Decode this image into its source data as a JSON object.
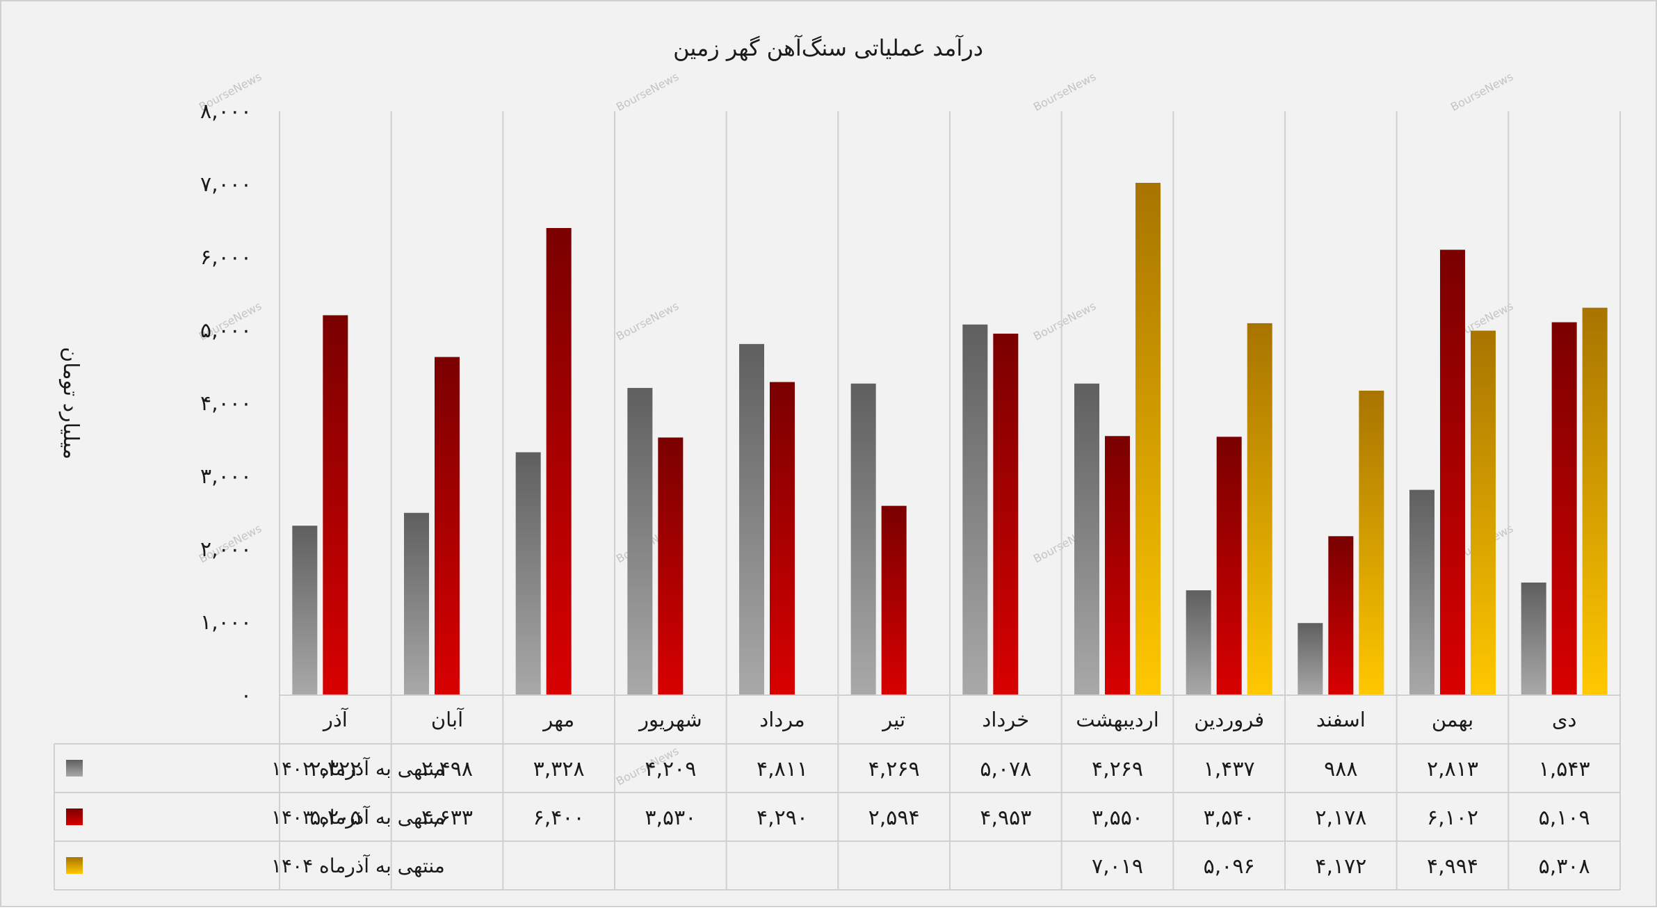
{
  "chart_data": {
    "type": "bar",
    "title": "درآمد عملیاتی سنگ‌آهن گهر زمین",
    "ylabel": "میلیارد تومان",
    "xlabel": "",
    "ylim": [
      0,
      8000
    ],
    "yticks": [
      0,
      1000,
      2000,
      3000,
      4000,
      5000,
      6000,
      7000,
      8000
    ],
    "ytick_labels": [
      "۰",
      "۱,۰۰۰",
      "۲,۰۰۰",
      "۳,۰۰۰",
      "۴,۰۰۰",
      "۵,۰۰۰",
      "۶,۰۰۰",
      "۷,۰۰۰",
      "۸,۰۰۰"
    ],
    "categories": [
      "دی",
      "بهمن",
      "اسفند",
      "فروردین",
      "اردیبهشت",
      "خرداد",
      "تیر",
      "مرداد",
      "شهریور",
      "مهر",
      "آبان",
      "آذر"
    ],
    "series": [
      {
        "name": "منتهی به آذرماه ۱۴۰۲",
        "values": [
          1543,
          2813,
          988,
          1437,
          4269,
          5078,
          4269,
          4811,
          4209,
          3328,
          2498,
          2322
        ],
        "labels": [
          "۱,۵۴۳",
          "۲,۸۱۳",
          "۹۸۸",
          "۱,۴۳۷",
          "۴,۲۶۹",
          "۵,۰۷۸",
          "۴,۲۶۹",
          "۴,۸۱۱",
          "۴,۲۰۹",
          "۳,۳۲۸",
          "۲,۴۹۸",
          "۲,۳۲۲"
        ],
        "color_top": "#5f5f5f",
        "color_bottom": "#a9a9a9"
      },
      {
        "name": "منتهی به آذرماه ۱۴۰۳",
        "values": [
          5109,
          6102,
          2178,
          3540,
          3550,
          4953,
          2594,
          4290,
          3530,
          6400,
          4633,
          5205
        ],
        "labels": [
          "۵,۱۰۹",
          "۶,۱۰۲",
          "۲,۱۷۸",
          "۳,۵۴۰",
          "۳,۵۵۰",
          "۴,۹۵۳",
          "۲,۵۹۴",
          "۴,۲۹۰",
          "۳,۵۳۰",
          "۶,۴۰۰",
          "۴,۶۳۳",
          "۵,۲۰۵"
        ],
        "color_top": "#7a0000",
        "color_bottom": "#d80000"
      },
      {
        "name": "منتهی به آذرماه ۱۴۰۴",
        "values": [
          5308,
          4994,
          4172,
          5096,
          7019,
          null,
          null,
          null,
          null,
          null,
          null,
          null
        ],
        "labels": [
          "۵,۳۰۸",
          "۴,۹۹۴",
          "۴,۱۷۲",
          "۵,۰۹۶",
          "۷,۰۱۹",
          "",
          "",
          "",
          "",
          "",
          "",
          ""
        ],
        "color_top": "#a87400",
        "color_bottom": "#ffc800"
      }
    ],
    "grid": true,
    "legend": "data-table-left",
    "watermark": "BourseNews"
  }
}
